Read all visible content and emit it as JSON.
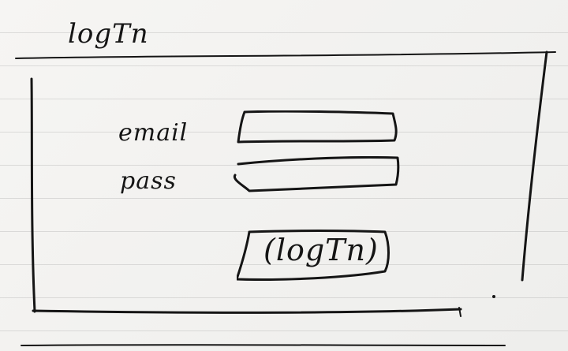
{
  "page": {
    "title": "logTn"
  },
  "form": {
    "email_label": "email",
    "pass_label": "pass",
    "login_button": "(logTn)"
  }
}
